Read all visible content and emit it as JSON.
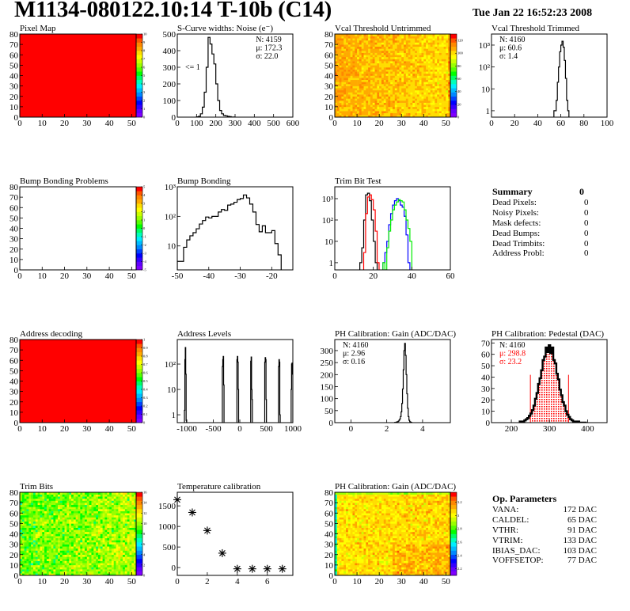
{
  "header": {
    "title": "M1134-080122.10:14 T-10b (C14)",
    "date": "Tue Jan 22 16:52:23 2008"
  },
  "palette": [
    "#7f00ff",
    "#6200ff",
    "#3300ff",
    "#0000ff",
    "#0044ff",
    "#0088ff",
    "#00bbff",
    "#00eeff",
    "#00ffbb",
    "#00ff66",
    "#00ff00",
    "#55ff00",
    "#99ff00",
    "#ccff00",
    "#ffff00",
    "#ffdd00",
    "#ffaa00",
    "#ff8800",
    "#ff5500",
    "#ff0000"
  ],
  "summary": {
    "title": "Summary",
    "total": "0",
    "rows": [
      {
        "label": "Dead Pixels:",
        "value": "0"
      },
      {
        "label": "Noisy Pixels:",
        "value": "0"
      },
      {
        "label": "Mask defects:",
        "value": "0"
      },
      {
        "label": "Dead Bumps:",
        "value": "0"
      },
      {
        "label": "Dead Trimbits:",
        "value": "0"
      },
      {
        "label": "Address Probl:",
        "value": "0"
      }
    ]
  },
  "op_parameters": {
    "title": "Op. Parameters",
    "rows": [
      {
        "label": "VANA:",
        "value": "172 DAC"
      },
      {
        "label": "CALDEL:",
        "value": "65 DAC"
      },
      {
        "label": "VTHR:",
        "value": "91 DAC"
      },
      {
        "label": "VTRIM:",
        "value": "133 DAC"
      },
      {
        "label": "IBIAS_DAC:",
        "value": "103 DAC"
      },
      {
        "label": "VOFFSETOP:",
        "value": "77 DAC"
      }
    ]
  },
  "chart_data": [
    {
      "title": "Pixel Map",
      "type": "heatmap",
      "xlim": [
        0,
        52
      ],
      "ylim": [
        0,
        80
      ],
      "xticks": [
        0,
        10,
        20,
        30,
        40,
        50
      ],
      "xticklabels": [
        "0",
        "10",
        "20",
        "30",
        "40",
        "50"
      ],
      "yticks": [
        0,
        10,
        20,
        30,
        40,
        50,
        60,
        70,
        80
      ],
      "yticklabels": [
        "0",
        "10",
        "20",
        "30",
        "40",
        "50",
        "60",
        "70",
        "80"
      ],
      "zlim": [
        0,
        10
      ],
      "zticks": [
        0,
        1,
        2,
        3,
        4,
        5,
        6,
        7,
        8,
        9,
        10
      ],
      "zticklabels": [
        "0",
        "1",
        "2",
        "3",
        "4",
        "5",
        "6",
        "7",
        "8",
        "9",
        "10"
      ],
      "pattern": "uniform",
      "value": 10
    },
    {
      "title": "S-Curve widths: Noise (e⁻)",
      "type": "bar",
      "xlim": [
        0,
        600
      ],
      "ylim": [
        0,
        500
      ],
      "xticks": [
        0,
        100,
        200,
        300,
        400,
        500,
        600
      ],
      "xticklabels": [
        "0",
        "100",
        "200",
        "300",
        "400",
        "500",
        "600"
      ],
      "yticks": [
        0,
        100,
        200,
        300,
        400,
        500
      ],
      "yticklabels": [
        "0",
        "100",
        "200",
        "300",
        "400",
        "500"
      ],
      "series": [
        {
          "color": "#000000",
          "x0": 100,
          "width": 10,
          "values": [
            2,
            5,
            20,
            60,
            150,
            300,
            480,
            440,
            380,
            320,
            200,
            100,
            40,
            20,
            10,
            8,
            5,
            3,
            1,
            1
          ]
        }
      ],
      "stats": [
        "N: 4159",
        "μ: 172.3",
        "σ: 22.0"
      ],
      "stats_position": "top-right",
      "annotation": "<= 1"
    },
    {
      "title": "Vcal Threshold Untrimmed",
      "type": "heatmap",
      "xlim": [
        0,
        52
      ],
      "ylim": [
        0,
        80
      ],
      "xticks": [
        0,
        10,
        20,
        30,
        40,
        50
      ],
      "xticklabels": [
        "0",
        "10",
        "20",
        "30",
        "40",
        "50"
      ],
      "yticks": [
        0,
        10,
        20,
        30,
        40,
        50,
        60,
        70,
        80
      ],
      "yticklabels": [
        "0",
        "10",
        "20",
        "30",
        "40",
        "50",
        "60",
        "70",
        "80"
      ],
      "zlim": [
        0,
        130
      ],
      "zticks": [
        0,
        20,
        40,
        60,
        80,
        100,
        120
      ],
      "zticklabels": [
        "0",
        "20",
        "40",
        "60",
        "80",
        "100",
        "120"
      ],
      "pattern": "noise",
      "mean_left": 108,
      "mean_right": 100,
      "spread": 6
    },
    {
      "title": "Vcal Threshold Trimmed",
      "type": "bar",
      "xlim": [
        0,
        100
      ],
      "ylim": [
        0.51,
        3200
      ],
      "logy": true,
      "xticks": [
        0,
        20,
        40,
        60,
        80,
        100
      ],
      "xticklabels": [
        "0",
        "20",
        "40",
        "60",
        "80",
        "100"
      ],
      "yticks": [
        1,
        10,
        100,
        1000
      ],
      "yticklabels": [
        "1",
        "10",
        "10²",
        "10³"
      ],
      "series": [
        {
          "color": "#000000",
          "x0": 54,
          "width": 1,
          "values": [
            1,
            1,
            3,
            20,
            100,
            500,
            1000,
            1500,
            800,
            200,
            30,
            3,
            1
          ]
        }
      ],
      "stats": [
        "N: 4160",
        "μ: 60.6",
        "σ:  1.4"
      ],
      "stats_position": "top-left"
    },
    {
      "title": "Bump Bonding Problems",
      "type": "heatmap",
      "xlim": [
        0,
        52
      ],
      "ylim": [
        0,
        80
      ],
      "xticks": [
        0,
        10,
        20,
        30,
        40,
        50
      ],
      "xticklabels": [
        "0",
        "10",
        "20",
        "30",
        "40",
        "50"
      ],
      "yticks": [
        0,
        10,
        20,
        30,
        40,
        50,
        60,
        70,
        80
      ],
      "yticklabels": [
        "0",
        "10",
        "20",
        "30",
        "40",
        "50",
        "60",
        "70",
        "80"
      ],
      "zlim": [
        -5,
        5
      ],
      "zticks": [
        -5,
        -4,
        -3,
        -2,
        -1,
        0,
        1,
        2,
        3,
        4,
        5
      ],
      "zticklabels": [
        "-5",
        "-4",
        "-3",
        "-2",
        "-1",
        "0",
        "1",
        "2",
        "3",
        "4",
        "5"
      ],
      "pattern": "empty"
    },
    {
      "title": "Bump Bonding",
      "type": "bar",
      "xlim": [
        -50,
        -13.3
      ],
      "ylim": [
        1.55,
        1000
      ],
      "logy": true,
      "xticks": [
        -50,
        -40,
        -30,
        -20
      ],
      "xticklabels": [
        "-50",
        "-40",
        "-30",
        "-20"
      ],
      "yticks": [
        10,
        100,
        1000
      ],
      "yticklabels": [
        "10",
        "10²",
        "10³"
      ],
      "series": [
        {
          "color": "#000000",
          "x0": -50,
          "width": 1,
          "values": [
            3,
            3,
            9,
            16,
            22,
            28,
            38,
            55,
            72,
            95,
            88,
            100,
            100,
            140,
            170,
            160,
            240,
            260,
            300,
            370,
            400,
            530,
            420,
            260,
            140,
            53,
            30,
            48,
            28,
            28,
            33,
            12,
            5
          ]
        }
      ]
    },
    {
      "title": "Trim Bit Test",
      "type": "bar",
      "xlim": [
        0,
        60
      ],
      "ylim": [
        0.46,
        3600
      ],
      "logy": true,
      "xticks": [
        0,
        20,
        40,
        60
      ],
      "xticklabels": [
        "0",
        "20",
        "40",
        "60"
      ],
      "yticks": [
        1,
        10,
        100,
        1000
      ],
      "yticklabels": [
        "1",
        "10",
        "10²",
        "10³"
      ],
      "series": [
        {
          "color": "#000000",
          "x0": 13,
          "width": 1,
          "values": [
            1,
            5,
            100,
            1500,
            1800,
            800,
            100,
            10,
            1
          ]
        },
        {
          "color": "#ff0000",
          "x0": 15,
          "width": 1,
          "values": [
            3,
            200,
            1200,
            1500,
            900,
            300,
            30,
            1
          ]
        },
        {
          "color": "#0000ff",
          "x0": 25,
          "width": 1,
          "values": [
            1,
            3,
            10,
            60,
            200,
            500,
            800,
            1000,
            800,
            500,
            400,
            150,
            20,
            1
          ]
        },
        {
          "color": "#00ee00",
          "x0": 25,
          "width": 1,
          "values": [
            1,
            0,
            5,
            30,
            100,
            300,
            500,
            700,
            900,
            800,
            700,
            300,
            100,
            40,
            10
          ]
        }
      ]
    },
    {
      "title": "Address decoding",
      "type": "heatmap",
      "xlim": [
        0,
        52
      ],
      "ylim": [
        0,
        80
      ],
      "xticks": [
        0,
        10,
        20,
        30,
        40,
        50
      ],
      "xticklabels": [
        "0",
        "10",
        "20",
        "30",
        "40",
        "50"
      ],
      "yticks": [
        0,
        10,
        20,
        30,
        40,
        50,
        60,
        70,
        80
      ],
      "yticklabels": [
        "0",
        "10",
        "20",
        "30",
        "40",
        "50",
        "60",
        "70",
        "80"
      ],
      "zlim": [
        0,
        1
      ],
      "zticks": [
        0,
        0.1,
        0.2,
        0.3,
        0.4,
        0.5,
        0.6,
        0.7,
        0.8,
        0.9,
        1
      ],
      "zticklabels": [
        "0",
        "0.1",
        "0.2",
        "0.3",
        "0.4",
        "0.5",
        "0.6",
        "0.7",
        "0.8",
        "0.9",
        "1"
      ],
      "pattern": "uniform",
      "value": 1
    },
    {
      "title": "Address Levels",
      "type": "bar",
      "xlim": [
        -1180,
        1000
      ],
      "ylim": [
        0.49,
        930
      ],
      "logy": true,
      "xticks": [
        -1000,
        -500,
        0,
        500,
        1000
      ],
      "xticklabels": [
        "-1000",
        "-500",
        "0",
        "500",
        "1000"
      ],
      "yticks": [
        1,
        10,
        100
      ],
      "yticklabels": [
        "1",
        "10",
        "10²"
      ],
      "series": [
        {
          "color": "#000000",
          "x0": -1045,
          "width": 8,
          "values": [
            1.5,
            150,
            450,
            40,
            0.6
          ]
        },
        {
          "color": "#000000",
          "x0": -330,
          "width": 8,
          "values": [
            80,
            150,
            200,
            15
          ]
        },
        {
          "color": "#000000",
          "x0": -55,
          "width": 8,
          "values": [
            150,
            200,
            120,
            10
          ]
        },
        {
          "color": "#000000",
          "x0": 205,
          "width": 8,
          "values": [
            130,
            190,
            10,
            4
          ]
        },
        {
          "color": "#000000",
          "x0": 470,
          "width": 8,
          "values": [
            120,
            180,
            150,
            4
          ]
        },
        {
          "color": "#000000",
          "x0": 730,
          "width": 8,
          "values": [
            80,
            150,
            120,
            1
          ]
        },
        {
          "color": "#000000",
          "x0": 968,
          "width": 8,
          "values": [
            10,
            100,
            110,
            40
          ]
        }
      ]
    },
    {
      "title": "PH Calibration: Gain (ADC/DAC)",
      "type": "bar",
      "xlim": [
        -0.9,
        5.55
      ],
      "ylim": [
        0,
        346
      ],
      "xticks": [
        0,
        2,
        4
      ],
      "xticklabels": [
        "0",
        "2",
        "4"
      ],
      "yticks": [
        0,
        50,
        100,
        150,
        200,
        250,
        300
      ],
      "yticklabels": [
        "0",
        "50",
        "100",
        "150",
        "200",
        "250",
        "300"
      ],
      "series": [
        {
          "color": "#000000",
          "x0": 2.44,
          "width": 0.04,
          "values": [
            1,
            1,
            2,
            3,
            4,
            6,
            10,
            15,
            25,
            45,
            80,
            140,
            220,
            300,
            330,
            280,
            200,
            120,
            60,
            25,
            10,
            4,
            2,
            1
          ]
        }
      ],
      "stats": [
        "N: 4160",
        "μ: 2.96",
        "σ: 0.16"
      ],
      "stats_position": "top-left"
    },
    {
      "title": "PH Calibration: Pedestal (DAC)",
      "type": "bar",
      "xlim": [
        148,
        451
      ],
      "ylim": [
        0,
        73
      ],
      "xticks": [
        200,
        300,
        400
      ],
      "xticklabels": [
        "200",
        "300",
        "400"
      ],
      "yticks": [
        0,
        10,
        20,
        30,
        40,
        50,
        60,
        70
      ],
      "yticklabels": [
        "0",
        "10",
        "20",
        "30",
        "40",
        "50",
        "60",
        "70"
      ],
      "series": [
        {
          "color": "#000000",
          "x0": 222,
          "width": 4,
          "values": [
            1,
            1,
            1,
            2,
            3,
            4,
            6,
            8,
            11,
            15,
            21,
            26,
            34,
            39,
            46,
            55,
            58,
            66,
            62,
            68,
            61,
            66,
            55,
            52,
            43,
            38,
            29,
            24,
            18,
            15,
            10,
            7,
            5,
            3,
            2,
            1,
            1,
            1,
            1,
            0,
            0,
            0,
            0,
            0
          ]
        }
      ],
      "fill_range": [
        250,
        350
      ],
      "fill_color": "#ff0000",
      "cut_lines": [
        250,
        350
      ],
      "cut_line_height": 42,
      "stats": [
        "N: 4160",
        "μ: 298.8",
        "σ: 23.2"
      ],
      "stats_colors": [
        "#000000",
        "#ff0000",
        "#ff0000"
      ],
      "stats_position": "top-left"
    },
    {
      "title": "Trim Bits",
      "type": "heatmap",
      "xlim": [
        0,
        52
      ],
      "ylim": [
        0,
        80
      ],
      "xticks": [
        0,
        10,
        20,
        30,
        40,
        50
      ],
      "xticklabels": [
        "0",
        "10",
        "20",
        "30",
        "40",
        "50"
      ],
      "yticks": [
        0,
        10,
        20,
        30,
        40,
        50,
        60,
        70,
        80
      ],
      "yticklabels": [
        "0",
        "10",
        "20",
        "30",
        "40",
        "50",
        "60",
        "70",
        "80"
      ],
      "zlim": [
        0,
        16
      ],
      "zticks": [
        0,
        2,
        4,
        6,
        8,
        10,
        12,
        14,
        16
      ],
      "zticklabels": [
        "0",
        "2",
        "4",
        "6",
        "8",
        "10",
        "12",
        "14",
        "16"
      ],
      "pattern": "noise",
      "mean_left": 9.3,
      "mean_right": 10.5,
      "spread": 1.4
    },
    {
      "title": "Temperature calibration",
      "type": "scatter",
      "xlim": [
        0,
        7.7
      ],
      "ylim": [
        -190,
        1830
      ],
      "xticks": [
        0,
        2,
        4,
        6
      ],
      "xticklabels": [
        "0",
        "2",
        "4",
        "6"
      ],
      "yticks": [
        0,
        500,
        1000,
        1500
      ],
      "yticklabels": [
        "0",
        "500",
        "1000",
        "1500"
      ],
      "x": [
        0,
        1,
        2,
        3,
        4,
        5,
        6,
        7
      ],
      "y": [
        1650,
        1340,
        900,
        350,
        -30,
        -30,
        -30,
        -30
      ],
      "marker": "asterisk"
    },
    {
      "title": "PH Calibration: Gain (ADC/DAC)",
      "type": "heatmap",
      "xlim": [
        0,
        52
      ],
      "ylim": [
        0,
        80
      ],
      "xticks": [
        0,
        10,
        20,
        30,
        40,
        50
      ],
      "xticklabels": [
        "0",
        "10",
        "20",
        "30",
        "40",
        "50"
      ],
      "yticks": [
        0,
        10,
        20,
        30,
        40,
        50,
        60,
        70,
        80
      ],
      "yticklabels": [
        "0",
        "10",
        "20",
        "30",
        "40",
        "50",
        "60",
        "70",
        "80"
      ],
      "zlim": [
        2.1,
        3.35
      ],
      "zticks": [
        2.2,
        2.4,
        2.6,
        2.8,
        3,
        3.2
      ],
      "zticklabels": [
        "2.2",
        "2.4",
        "2.6",
        "2.8",
        "3",
        "3.2"
      ],
      "pattern": "noise",
      "mean_left": 3.05,
      "mean_right": 3.08,
      "spread": 0.07
    }
  ]
}
